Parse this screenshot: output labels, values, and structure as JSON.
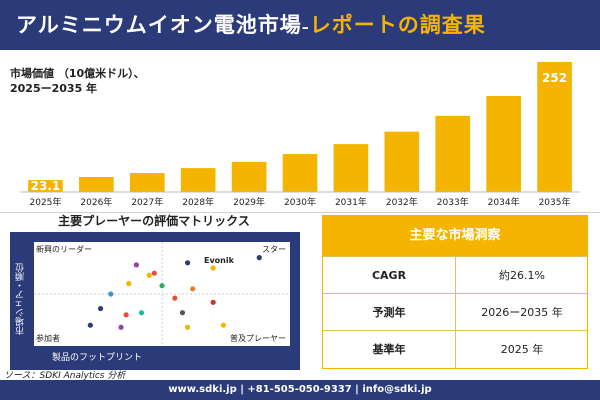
{
  "header": {
    "title_main": "アルミニウムイオン電池市場",
    "title_dash": "–",
    "title_sub": "レポートの調査果"
  },
  "chart_label": {
    "line1": "市場価値 （10億米ドル）、",
    "line2": "2025ー2035 年"
  },
  "chart_data": {
    "type": "bar",
    "categories": [
      "2025年",
      "2026年",
      "2027年",
      "2028年",
      "2029年",
      "2030年",
      "2031年",
      "2032年",
      "2033年",
      "2034年",
      "2035年"
    ],
    "values": [
      23.1,
      29.1,
      36.7,
      46.3,
      58.4,
      73.6,
      92.8,
      117.0,
      147.6,
      186.1,
      252
    ],
    "value_labels": [
      "23.1",
      "",
      "",
      "",
      "",
      "",
      "",
      "",
      "",
      "",
      "252"
    ],
    "color": "#f4b400"
  },
  "matrix": {
    "title": "主要プレーヤーの評価マトリックス",
    "corner_tl": "新興のリーダー",
    "corner_tr": "スター",
    "corner_bl": "参加者",
    "corner_br": "普及プレーヤー",
    "axis_y": "市場シェア・順位",
    "axis_x": "製品のフットプリント",
    "evonik_label": "Evonik",
    "points": [
      {
        "x": 0.4,
        "y": 0.78,
        "c": "#8e44ad"
      },
      {
        "x": 0.47,
        "y": 0.7,
        "c": "#e74c3c"
      },
      {
        "x": 0.6,
        "y": 0.8,
        "c": "#2b3a78"
      },
      {
        "x": 0.88,
        "y": 0.85,
        "c": "#2b3a78"
      },
      {
        "x": 0.7,
        "y": 0.75,
        "c": "#f4b400"
      },
      {
        "x": 0.37,
        "y": 0.6,
        "c": "#f4b400"
      },
      {
        "x": 0.5,
        "y": 0.58,
        "c": "#27ae60"
      },
      {
        "x": 0.62,
        "y": 0.55,
        "c": "#e67e22"
      },
      {
        "x": 0.3,
        "y": 0.5,
        "c": "#3498db"
      },
      {
        "x": 0.55,
        "y": 0.46,
        "c": "#e74c3c"
      },
      {
        "x": 0.26,
        "y": 0.36,
        "c": "#2b3a78"
      },
      {
        "x": 0.36,
        "y": 0.3,
        "c": "#e74c3c"
      },
      {
        "x": 0.42,
        "y": 0.32,
        "c": "#1abc9c"
      },
      {
        "x": 0.58,
        "y": 0.32,
        "c": "#555555"
      },
      {
        "x": 0.7,
        "y": 0.42,
        "c": "#c0392b"
      },
      {
        "x": 0.34,
        "y": 0.18,
        "c": "#8e44ad"
      },
      {
        "x": 0.22,
        "y": 0.2,
        "c": "#2b3a78"
      },
      {
        "x": 0.6,
        "y": 0.18,
        "c": "#f4b400"
      },
      {
        "x": 0.74,
        "y": 0.2,
        "c": "#f4b400"
      },
      {
        "x": 0.45,
        "y": 0.68,
        "c": "#f4b400"
      }
    ]
  },
  "key_insights": {
    "title": "主要な市場洞察",
    "rows": [
      {
        "label": "CAGR",
        "value": "約26.1%"
      },
      {
        "label": "予測年",
        "value": "2026ー2035 年"
      },
      {
        "label": "基準年",
        "value": "2025 年"
      }
    ]
  },
  "source": "ソース：SDKI Analytics 分析",
  "footer": "www.sdki.jp | +81-505-050-9337 | info@sdki.jp"
}
